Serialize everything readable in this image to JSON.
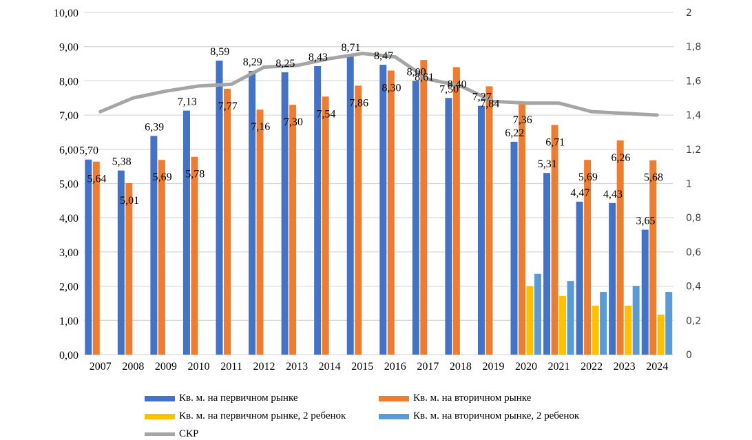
{
  "chart_data": {
    "type": "bar",
    "title": "",
    "categories": [
      "2007",
      "2008",
      "2009",
      "2010",
      "2011",
      "2012",
      "2013",
      "2014",
      "2015",
      "2016",
      "2017",
      "2018",
      "2019",
      "2020",
      "2021",
      "2022",
      "2023",
      "2024"
    ],
    "series": [
      {
        "name": "Кв. м. на первичном рынке",
        "color": "#4472C4",
        "axis": "left",
        "type": "bar",
        "labeled": true,
        "values": [
          5.7,
          5.38,
          6.39,
          7.13,
          8.59,
          8.29,
          8.25,
          8.43,
          8.71,
          8.47,
          8.0,
          7.5,
          7.27,
          6.22,
          5.31,
          4.47,
          4.43,
          3.65
        ],
        "labels": [
          "5,70",
          "5,38",
          "6,39",
          "7,13",
          "8,59",
          "8,29",
          "8,25",
          "8,43",
          "8,71",
          "8,47",
          "8,00",
          "7,50",
          "7,27",
          "6,22",
          "5,31",
          "4,47",
          "4,43",
          "3,65"
        ]
      },
      {
        "name": "Кв. м. на вторичном рынке",
        "color": "#ED7D31",
        "axis": "left",
        "type": "bar",
        "labeled": true,
        "values": [
          5.64,
          5.01,
          5.69,
          5.78,
          7.77,
          7.16,
          7.3,
          7.54,
          7.86,
          8.3,
          8.61,
          8.4,
          7.84,
          7.36,
          6.71,
          5.69,
          6.26,
          5.68
        ],
        "labels": [
          "5,64",
          "5,01",
          "5,69",
          "5,78",
          "7,77",
          "7,16",
          "7,30",
          "7,54",
          "7,86",
          "8,30",
          "8,61",
          "8,40",
          "7,84",
          "7,36",
          "6,71",
          "5,69",
          "6,26",
          "5,68"
        ]
      },
      {
        "name": "Кв. м. на первичном рынке, 2 ребенок",
        "color": "#FFC000",
        "axis": "left",
        "type": "bar",
        "labeled": false,
        "values": [
          null,
          null,
          null,
          null,
          null,
          null,
          null,
          null,
          null,
          null,
          null,
          null,
          null,
          2.0,
          1.71,
          1.43,
          1.43,
          1.17
        ]
      },
      {
        "name": "Кв. м. на вторичном рынке, 2 ребенок",
        "color": "#5B9BD5",
        "axis": "left",
        "type": "bar",
        "labeled": false,
        "values": [
          null,
          null,
          null,
          null,
          null,
          null,
          null,
          null,
          null,
          null,
          null,
          null,
          null,
          2.36,
          2.15,
          1.83,
          2.01,
          1.83
        ]
      },
      {
        "name": "СКР",
        "color": "#A5A5A5",
        "axis": "right",
        "type": "line",
        "labeled": false,
        "values": [
          1.42,
          1.5,
          1.54,
          1.57,
          1.58,
          1.68,
          1.69,
          1.73,
          1.76,
          1.74,
          1.61,
          1.57,
          1.48,
          1.47,
          1.47,
          1.42,
          1.41,
          1.4
        ]
      }
    ],
    "y_left": {
      "ylim": [
        0,
        10
      ],
      "ticks": [
        "0,00",
        "1,00",
        "2,00",
        "3,00",
        "4,00",
        "5,00",
        "6,00",
        "7,00",
        "8,00",
        "9,00",
        "10,00"
      ]
    },
    "y_right": {
      "ylim": [
        0,
        2
      ],
      "ticks": [
        "0",
        "0,2",
        "0,4",
        "0,6",
        "0,8",
        "1",
        "1,2",
        "1,4",
        "1,6",
        "1,8",
        "2"
      ]
    },
    "xlabel": "",
    "ylabel": "",
    "grid": true,
    "legend_position": "bottom"
  }
}
